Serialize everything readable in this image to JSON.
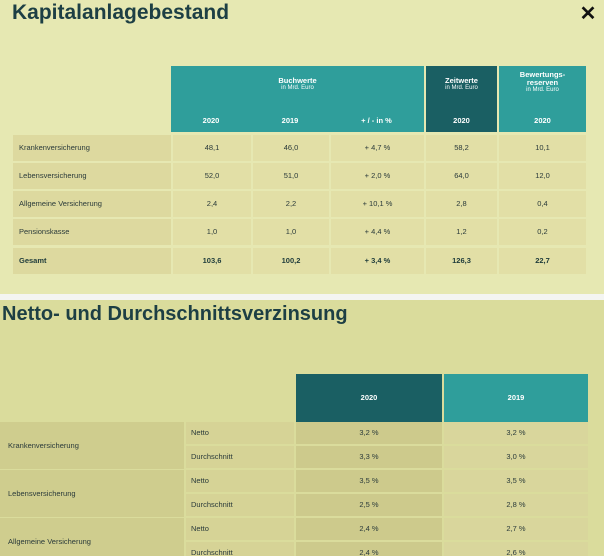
{
  "close_icon": "✕",
  "table1": {
    "title": "Kapitalanlagebestand",
    "groups": {
      "buchwerte": {
        "title": "Buchwerte",
        "unit": "in Mrd. Euro"
      },
      "zeitwerte": {
        "title": "Zeitwerte",
        "unit": "in Mrd. Euro"
      },
      "reserven": {
        "title": "Bewertungs-reserven",
        "unit": "in Mrd. Euro"
      }
    },
    "columns": [
      "2020",
      "2019",
      "+ / - in %",
      "2020",
      "2020"
    ],
    "rows": [
      {
        "label": "Krankenversicherung",
        "values": [
          "48,1",
          "46,0",
          "+ 4,7 %",
          "58,2",
          "10,1"
        ]
      },
      {
        "label": "Lebensversicherung",
        "values": [
          "52,0",
          "51,0",
          "+ 2,0 %",
          "64,0",
          "12,0"
        ]
      },
      {
        "label": "Allgemeine Versicherung",
        "values": [
          "2,4",
          "2,2",
          "+ 10,1 %",
          "2,8",
          "0,4"
        ]
      },
      {
        "label": "Pensionskasse",
        "values": [
          "1,0",
          "1,0",
          "+ 4,4 %",
          "1,2",
          "0,2"
        ]
      },
      {
        "label": "Gesamt",
        "values": [
          "103,6",
          "100,2",
          "+ 3,4 %",
          "126,3",
          "22,7"
        ]
      }
    ]
  },
  "table2": {
    "title": "Netto- und Durchschnittsverzinsung",
    "columns": [
      "2020",
      "2019"
    ],
    "groups": [
      {
        "label": "Krankenversicherung",
        "rows": [
          {
            "label": "Netto",
            "values": [
              "3,2 %",
              "3,2 %"
            ]
          },
          {
            "label": "Durchschnitt",
            "values": [
              "3,3 %",
              "3,0 %"
            ]
          }
        ]
      },
      {
        "label": "Lebensversicherung",
        "rows": [
          {
            "label": "Netto",
            "values": [
              "3,5 %",
              "3,5 %"
            ]
          },
          {
            "label": "Durchschnitt",
            "values": [
              "2,5 %",
              "2,8 %"
            ]
          }
        ]
      },
      {
        "label": "Allgemeine Versicherung",
        "rows": [
          {
            "label": "Netto",
            "values": [
              "2,4 %",
              "2,7 %"
            ]
          },
          {
            "label": "Durchschnitt",
            "values": [
              "2,4 %",
              "2,6 %"
            ]
          }
        ]
      }
    ]
  }
}
